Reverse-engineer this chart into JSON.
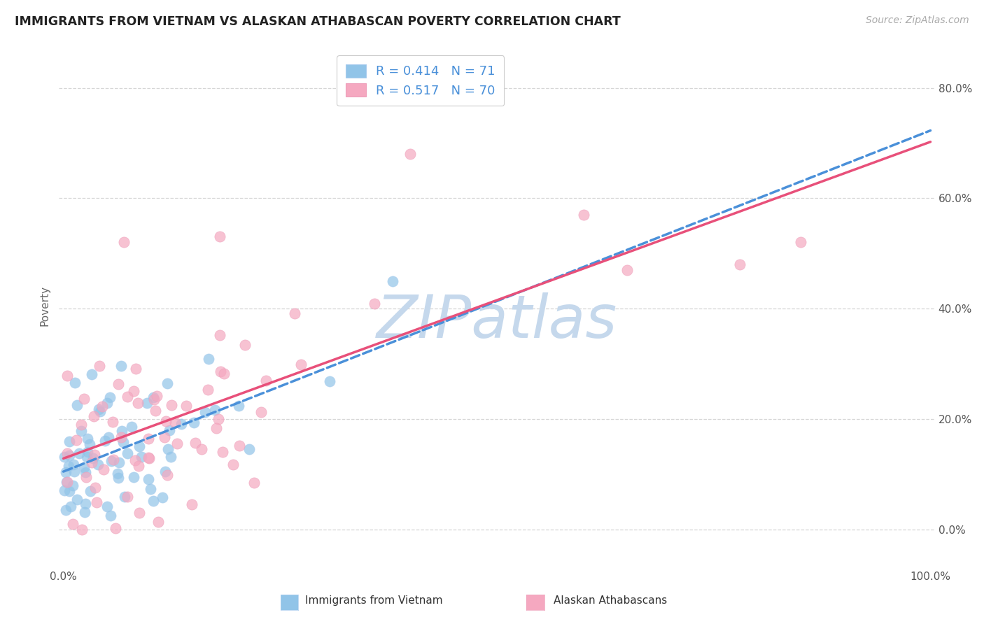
{
  "title": "IMMIGRANTS FROM VIETNAM VS ALASKAN ATHABASCAN POVERTY CORRELATION CHART",
  "source_text": "Source: ZipAtlas.com",
  "ylabel": "Poverty",
  "yticklabels_right": [
    "0.0%",
    "20.0%",
    "40.0%",
    "60.0%",
    "80.0%"
  ],
  "yticks": [
    0.0,
    0.2,
    0.4,
    0.6,
    0.8
  ],
  "xmin": 0.0,
  "xmax": 1.0,
  "ymin": -0.07,
  "ymax": 0.88,
  "blue_color": "#91c4e8",
  "pink_color": "#f5a8c0",
  "blue_line_color": "#4a90d9",
  "pink_line_color": "#e8507a",
  "watermark_text": "ZIPatlas",
  "watermark_color": "#c5d8ec",
  "grid_color": "#cccccc",
  "legend_label1": "Immigrants from Vietnam",
  "legend_label2": "Alaskan Athabascans",
  "blue_R": 0.414,
  "pink_R": 0.517,
  "blue_N": 71,
  "pink_N": 70,
  "title_color": "#222222",
  "axis_label_color": "#666666",
  "tick_label_color": "#555555",
  "legend_value_color": "#4a90d9"
}
